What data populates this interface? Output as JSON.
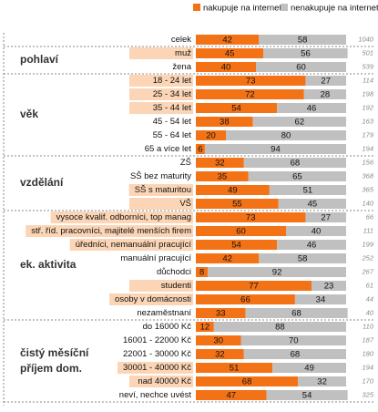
{
  "chart_data": {
    "type": "stacked-barh",
    "categories": [
      "celek",
      "muž",
      "žena",
      "18 - 24 let",
      "25 - 34 let",
      "35 - 44 let",
      "45 - 54 let",
      "55 - 64 let",
      "65 a více let",
      "ZŠ",
      "SŠ bez maturity",
      "SŠ s maturitou",
      "VŠ",
      "vysoce kvalif. odborníci, top manag",
      "stř. říd. pracovníci, majitelé menších firem",
      "úředníci, nemanuální pracující",
      "manuální pracující",
      "důchodci",
      "studenti",
      "osoby v domácnosti",
      "nezaměstnaní",
      "do 16000 Kč",
      "16001 - 22000 Kč",
      "22001 - 30000 Kč",
      "30001 - 40000 Kč",
      "nad 40000 Kč",
      "neví, nechce uvést"
    ],
    "series": [
      {
        "name": "nakupuje na internetu",
        "color": "#f47216",
        "values": [
          42,
          45,
          40,
          73,
          72,
          54,
          38,
          20,
          6,
          32,
          35,
          49,
          55,
          73,
          60,
          54,
          42,
          8,
          77,
          66,
          33,
          12,
          30,
          32,
          51,
          68,
          47
        ]
      },
      {
        "name": "nenakupuje na internetu",
        "color": "#c0c0c0",
        "values": [
          58,
          56,
          60,
          27,
          28,
          46,
          62,
          80,
          94,
          68,
          65,
          51,
          45,
          27,
          40,
          46,
          58,
          92,
          23,
          34,
          68,
          88,
          70,
          68,
          49,
          32,
          54
        ]
      }
    ],
    "n": [
      1040,
      501,
      539,
      114,
      198,
      192,
      163,
      179,
      194,
      156,
      368,
      365,
      140,
      66,
      111,
      199,
      252,
      267,
      61,
      44,
      40,
      110,
      187,
      180,
      194,
      170,
      325
    ],
    "highlight": [
      false,
      true,
      false,
      true,
      true,
      true,
      false,
      false,
      false,
      false,
      false,
      true,
      true,
      true,
      true,
      true,
      false,
      false,
      true,
      true,
      false,
      false,
      false,
      false,
      true,
      true,
      false
    ],
    "highlight_color": "#fbd5b5",
    "groups": [
      {
        "label": "pohlaví",
        "first": 1,
        "count": 2
      },
      {
        "label": "věk",
        "first": 3,
        "count": 6
      },
      {
        "label": "vzdělání",
        "first": 9,
        "count": 4
      },
      {
        "label": "ek. aktivita",
        "first": 13,
        "count": 8
      },
      {
        "label": "čistý měsíční příjem dom.",
        "first": 21,
        "count": 6
      }
    ],
    "xlim": [
      0,
      100
    ]
  }
}
